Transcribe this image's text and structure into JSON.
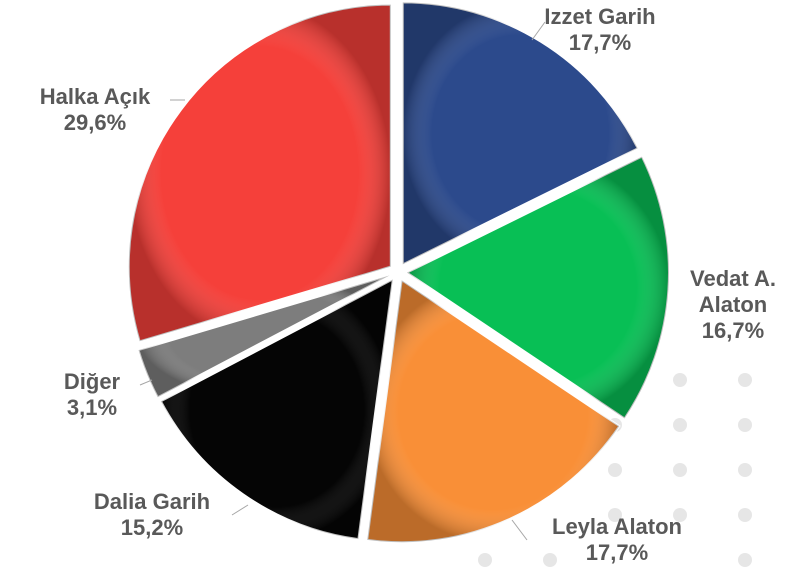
{
  "chart_data": {
    "type": "pie",
    "categories": [
      "Izzet Garih",
      "Vedat A. Alaton",
      "Leyla Alaton",
      "Dalia Garih",
      "Diğer",
      "Halka Açık"
    ],
    "values": [
      17.7,
      16.7,
      17.7,
      15.2,
      3.1,
      29.6
    ],
    "value_labels": [
      "17,7%",
      "16,7%",
      "17,7%",
      "15,2%",
      "3,1%",
      "29,6%"
    ],
    "colors": [
      "#2c4a8c",
      "#08bf55",
      "#f98f37",
      "#050505",
      "#7d7d7d",
      "#f5403a"
    ]
  }
}
